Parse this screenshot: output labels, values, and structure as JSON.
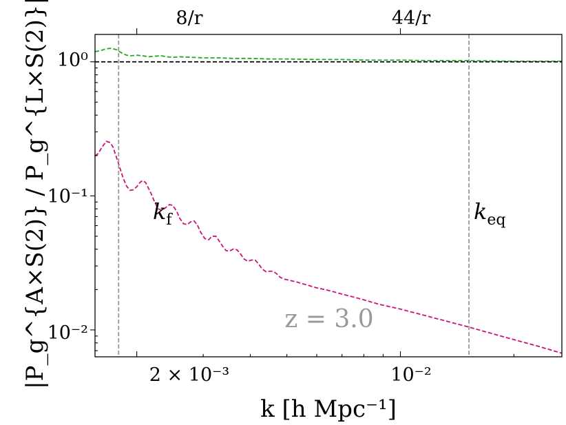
{
  "chart_data": {
    "type": "line",
    "xscale": "log",
    "yscale": "log",
    "xlim": [
      0.00155,
      0.0268
    ],
    "ylim": [
      0.0063,
      1.6
    ],
    "xlabel": "k [h Mpc⁻¹]",
    "ylabel": "|P_g^{A×S(2)} / P_g^{L×S(2)}|",
    "x_ticks": [
      {
        "value": 0.002,
        "label": "2 × 10⁻³"
      },
      {
        "value": 0.01,
        "label": "10⁻²"
      }
    ],
    "y_ticks": [
      {
        "value": 1,
        "label": "10⁰"
      },
      {
        "value": 0.1,
        "label": "10⁻¹"
      },
      {
        "value": 0.01,
        "label": "10⁻²"
      }
    ],
    "top_ticks": [
      {
        "value": 0.002,
        "label": "8/r"
      },
      {
        "value": 0.01,
        "label": "44/r"
      }
    ],
    "series": [
      {
        "color": "#22aa22",
        "style": "dashed",
        "x": [
          0.00155,
          0.0016,
          0.00166,
          0.0017,
          0.00173,
          0.00177,
          0.0018,
          0.00184,
          0.00188,
          0.00193,
          0.002,
          0.00207,
          0.00215,
          0.00222,
          0.00232,
          0.0024,
          0.0025,
          0.0026,
          0.0028,
          0.003,
          0.0033,
          0.0036,
          0.004,
          0.0045,
          0.005,
          0.006,
          0.007,
          0.008,
          0.01,
          0.012,
          0.015,
          0.02,
          0.0268
        ],
        "y": [
          1.19,
          1.21,
          1.25,
          1.26,
          1.25,
          1.23,
          1.19,
          1.15,
          1.12,
          1.11,
          1.12,
          1.11,
          1.09,
          1.1,
          1.11,
          1.09,
          1.08,
          1.09,
          1.08,
          1.07,
          1.07,
          1.06,
          1.06,
          1.05,
          1.05,
          1.04,
          1.04,
          1.03,
          1.03,
          1.02,
          1.02,
          1.01,
          1.01
        ]
      },
      {
        "color": "#000000",
        "style": "dashed",
        "x": [
          0.00155,
          0.0268
        ],
        "y": [
          1.0,
          1.0
        ]
      },
      {
        "color": "#cc1177",
        "style": "dashed",
        "x": [
          0.00155,
          0.00158,
          0.00162,
          0.00166,
          0.0017,
          0.00173,
          0.00176,
          0.0018,
          0.00184,
          0.00188,
          0.00192,
          0.00196,
          0.002,
          0.00204,
          0.00207,
          0.00211,
          0.00218,
          0.00223,
          0.00228,
          0.00233,
          0.00239,
          0.00244,
          0.00249,
          0.00255,
          0.0026,
          0.00266,
          0.00272,
          0.00278,
          0.00284,
          0.0029,
          0.00296,
          0.00303,
          0.0031,
          0.00317,
          0.00324,
          0.00331,
          0.00338,
          0.00345,
          0.00353,
          0.00361,
          0.00369,
          0.00377,
          0.00385,
          0.00394,
          0.00403,
          0.00412,
          0.00421,
          0.0043,
          0.0044,
          0.0045,
          0.0046,
          0.0047,
          0.0048,
          0.0049,
          0.005,
          0.0053,
          0.0056,
          0.006,
          0.0065,
          0.007,
          0.0078,
          0.0088,
          0.01,
          0.012,
          0.015,
          0.019,
          0.023,
          0.0268
        ],
        "y": [
          0.198,
          0.207,
          0.232,
          0.255,
          0.25,
          0.231,
          0.2,
          0.165,
          0.136,
          0.118,
          0.11,
          0.111,
          0.117,
          0.126,
          0.13,
          0.126,
          0.105,
          0.09,
          0.08,
          0.078,
          0.082,
          0.086,
          0.085,
          0.077,
          0.068,
          0.062,
          0.061,
          0.064,
          0.065,
          0.06,
          0.053,
          0.048,
          0.047,
          0.05,
          0.05,
          0.046,
          0.042,
          0.039,
          0.0388,
          0.0402,
          0.0395,
          0.0368,
          0.0338,
          0.0325,
          0.0332,
          0.0332,
          0.031,
          0.0285,
          0.0272,
          0.0274,
          0.0274,
          0.0262,
          0.0247,
          0.024,
          0.0237,
          0.0228,
          0.0218,
          0.0206,
          0.0196,
          0.0185,
          0.0171,
          0.0155,
          0.0143,
          0.0125,
          0.0106,
          0.0088,
          0.0076,
          0.0067
        ]
      }
    ],
    "vlines": [
      {
        "x": 0.00179,
        "label_main": "k",
        "label_sub": "f",
        "color": "#999999"
      },
      {
        "x": 0.0152,
        "label_main": "k",
        "label_sub": "eq",
        "color": "#999999"
      }
    ],
    "annotation": "z = 3.0",
    "grid": false,
    "legend": "none"
  }
}
